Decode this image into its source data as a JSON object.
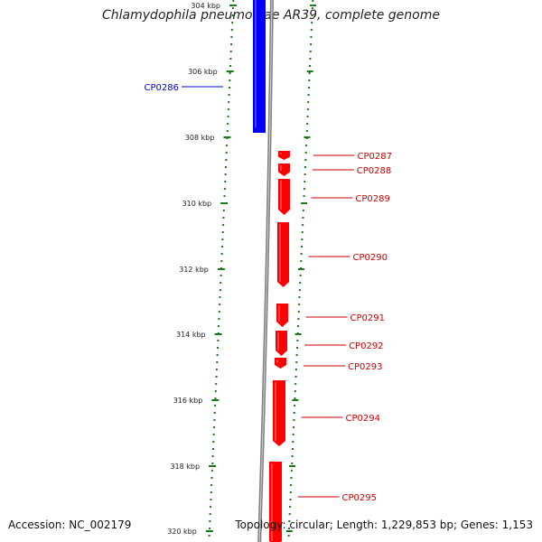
{
  "title": "Chlamydophila pneumoniae AR39, complete genome",
  "accession": "Accession: NC_002179",
  "summary": "Topology: circular; Length: 1,229,853 bp; Genes: 1,153",
  "colors": {
    "forward_gene": "#ff0000",
    "reverse_gene": "#0000ff",
    "backbone": "#808080",
    "tick": "#1a7a1a",
    "label_forward": "#cc0000",
    "label_reverse": "#0000cc"
  },
  "ticks": [
    {
      "label": "304 kbp"
    },
    {
      "label": "306 kbp"
    },
    {
      "label": "308 kbp"
    },
    {
      "label": "310 kbp"
    },
    {
      "label": "312 kbp"
    },
    {
      "label": "314 kbp"
    },
    {
      "label": "316 kbp"
    },
    {
      "label": "318 kbp"
    },
    {
      "label": "320 kbp"
    }
  ],
  "genes": [
    {
      "name": "CP0286",
      "strand": "reverse"
    },
    {
      "name": "CP0287",
      "strand": "forward"
    },
    {
      "name": "CP0288",
      "strand": "forward"
    },
    {
      "name": "CP0289",
      "strand": "forward"
    },
    {
      "name": "CP0290",
      "strand": "forward"
    },
    {
      "name": "CP0291",
      "strand": "forward"
    },
    {
      "name": "CP0292",
      "strand": "forward"
    },
    {
      "name": "CP0293",
      "strand": "forward"
    },
    {
      "name": "CP0294",
      "strand": "forward"
    },
    {
      "name": "CP0295",
      "strand": "forward"
    }
  ]
}
